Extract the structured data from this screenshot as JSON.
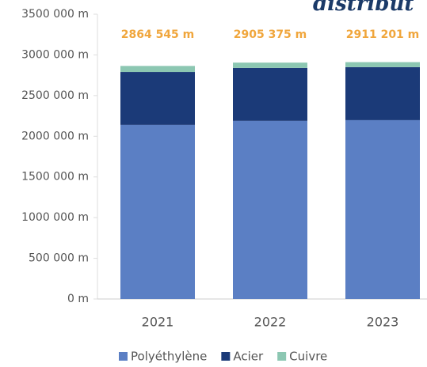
{
  "chart_data": {
    "type": "stacked_bar",
    "title": "distribut",
    "categories": [
      "2021",
      "2022",
      "2023"
    ],
    "series": [
      {
        "name": "Polyéthylène",
        "color": "#5b7fc4",
        "values": [
          2140000,
          2189000,
          2198000
        ]
      },
      {
        "name": "Acier",
        "color": "#1b3a78",
        "values": [
          650000,
          651000,
          652000
        ]
      },
      {
        "name": "Cuivre",
        "color": "#8cc7b2",
        "values": [
          74545,
          65375,
          61201
        ]
      }
    ],
    "totals": [
      2864545,
      2905375,
      2911201
    ],
    "total_labels": [
      "2864 545 m",
      "2905 375 m",
      "2911 201 m"
    ],
    "total_color": "#f0a63c",
    "ylim": [
      0,
      3500000
    ],
    "yticks": [
      {
        "value": 0,
        "label": "0 m"
      },
      {
        "value": 500000,
        "label": "500 000 m"
      },
      {
        "value": 1000000,
        "label": "1000 000 m"
      },
      {
        "value": 1500000,
        "label": "1500 000 m"
      },
      {
        "value": 2000000,
        "label": "2000 000 m"
      },
      {
        "value": 2500000,
        "label": "2500 000 m"
      },
      {
        "value": 3000000,
        "label": "3000 000 m"
      },
      {
        "value": 3500000,
        "label": "3500 000 m"
      }
    ],
    "legend": "bottom"
  }
}
